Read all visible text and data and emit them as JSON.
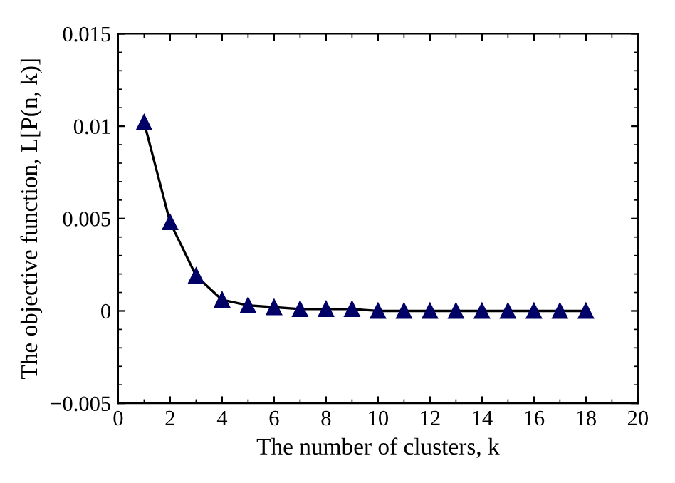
{
  "chart_data": {
    "type": "line",
    "xlabel": "The number of clusters, k",
    "ylabel": "The objective function, L[P(n, k)]",
    "x": [
      1,
      2,
      3,
      4,
      5,
      6,
      7,
      8,
      9,
      10,
      11,
      12,
      13,
      14,
      15,
      16,
      17,
      18
    ],
    "series": [
      {
        "color": "#000066",
        "values": [
          0.0102,
          0.0048,
          0.0019,
          0.0006,
          0.0003,
          0.0002,
          0.0001,
          0.0001,
          0.0001,
          0,
          0,
          0,
          0,
          0,
          0,
          0,
          0,
          0
        ]
      }
    ],
    "marker": "triangle",
    "line_style": "solid",
    "xlim": [
      0,
      20
    ],
    "xticks": [
      0,
      2,
      4,
      6,
      8,
      10,
      12,
      14,
      16,
      18,
      20
    ],
    "ylim": [
      -0.005,
      0.015
    ],
    "yticks": [
      {
        "value": -0.005,
        "label": "−0.005"
      },
      0,
      0.005,
      0.01,
      0.015
    ],
    "grid": false,
    "legend": false
  }
}
